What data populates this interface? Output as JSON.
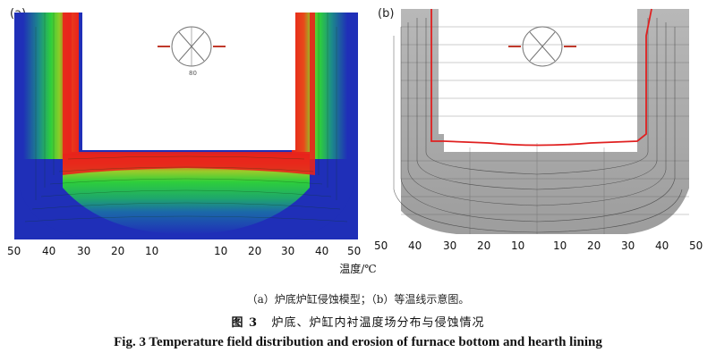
{
  "panels": {
    "a": {
      "label": "(a)",
      "tick_labels": [
        "50",
        "40",
        "30",
        "20",
        "10",
        "10",
        "20",
        "30",
        "40",
        "50"
      ]
    },
    "b": {
      "label": "(b)",
      "tick_labels": [
        "50",
        "40",
        "30",
        "20",
        "10",
        "10",
        "20",
        "30",
        "40",
        "50"
      ]
    }
  },
  "axis_unit": "温度/℃",
  "compass_label": "80",
  "captions": {
    "subfigure": "（a）炉底炉缸侵蚀模型；（b）等温线示意图。",
    "figure_number": "图 3",
    "figure_title_zh": "炉底、炉缸内衬温度场分布与侵蚀情况",
    "figure_title_en": "Fig. 3   Temperature field distribution and erosion of furnace bottom and hearth lining"
  },
  "colors": {
    "hot": "#e8231c",
    "warm": "#26c83a",
    "cool": "#1f2fb8",
    "erosion_line": "#e02020",
    "lining_gray": "#a8a8a8"
  }
}
